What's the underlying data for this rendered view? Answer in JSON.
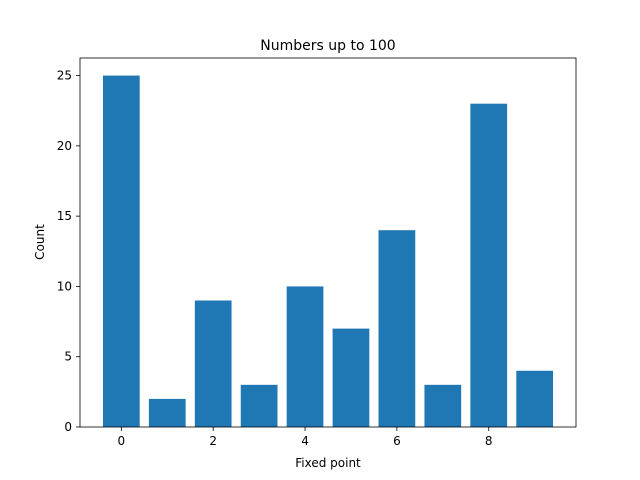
{
  "chart_data": {
    "type": "bar",
    "title": "Numbers up to 100",
    "xlabel": "Fixed point",
    "ylabel": "Count",
    "x": [
      0,
      1,
      2,
      3,
      4,
      5,
      6,
      7,
      8,
      9
    ],
    "values": [
      25,
      2,
      9,
      3,
      10,
      7,
      14,
      3,
      23,
      4
    ],
    "xlim": [
      -0.9,
      9.9
    ],
    "ylim": [
      0,
      26.25
    ],
    "xticks": [
      0,
      2,
      4,
      6,
      8
    ],
    "yticks": [
      0,
      5,
      10,
      15,
      20,
      25
    ],
    "bar_color": "#1f77b4",
    "grid": false,
    "legend": "none"
  }
}
